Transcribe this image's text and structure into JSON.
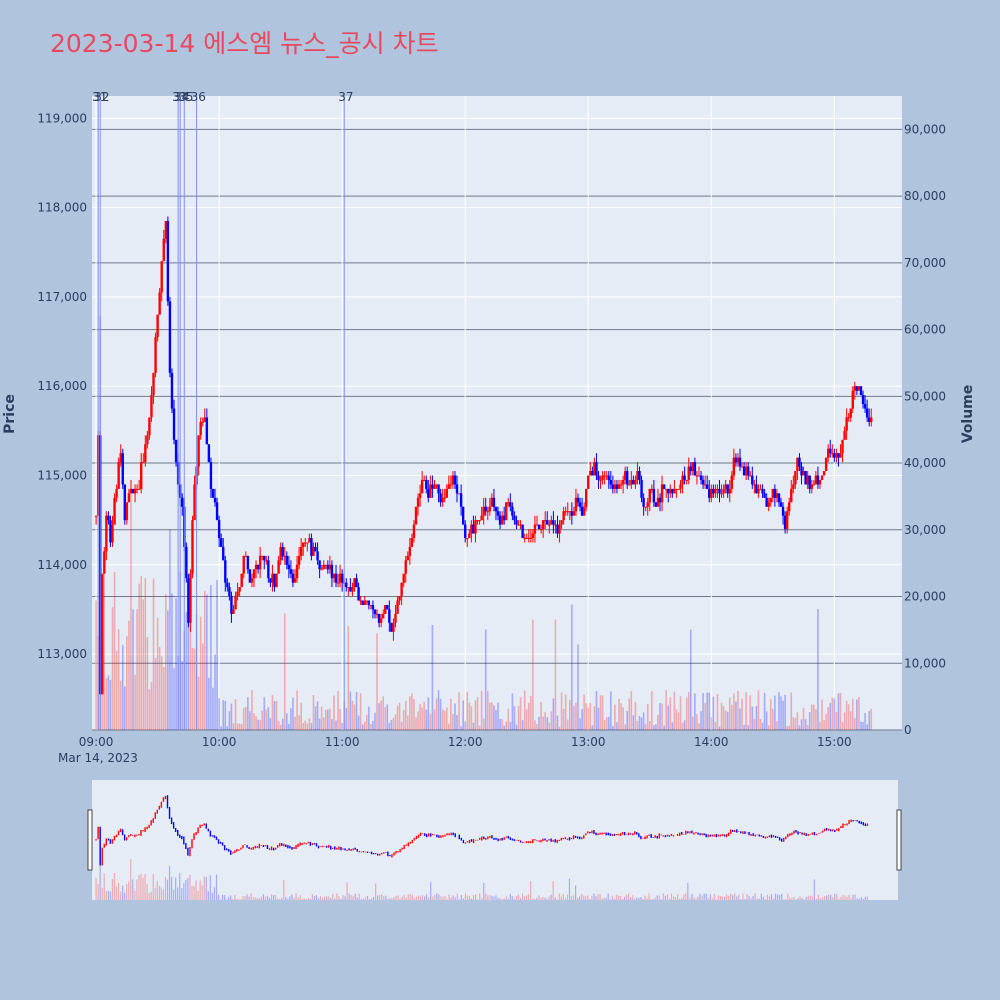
{
  "title": "2023-03-14 에스엠 뉴스_공시 차트",
  "colors": {
    "up": "#ff0000",
    "down": "#0000ff",
    "marker": "#7f8ff0",
    "title": "#e8495f",
    "plot_bg": "#e5ecf6",
    "page_bg": "#b0c4de"
  },
  "chart_data": {
    "type": "candlestick",
    "title": "2023-03-14 에스엠 뉴스_공시 차트",
    "date_label": "Mar 14, 2023",
    "x_range": [
      "08:58",
      "15:33"
    ],
    "x_ticks": [
      "09:00",
      "10:00",
      "11:00",
      "12:00",
      "13:00",
      "14:00",
      "15:00"
    ],
    "y_price": {
      "label": "Price",
      "range": [
        112150,
        119250
      ],
      "ticks": [
        {
          "v": 113000,
          "t": "113,000"
        },
        {
          "v": 114000,
          "t": "114,000"
        },
        {
          "v": 115000,
          "t": "115,000"
        },
        {
          "v": 116000,
          "t": "116,000"
        },
        {
          "v": 117000,
          "t": "117,000"
        },
        {
          "v": 118000,
          "t": "118,000"
        },
        {
          "v": 119000,
          "t": "119,000"
        }
      ]
    },
    "y_volume": {
      "label": "Volume",
      "range": [
        0,
        95000
      ],
      "ticks": [
        {
          "v": 0,
          "t": "0"
        },
        {
          "v": 10000,
          "t": "10,000"
        },
        {
          "v": 20000,
          "t": "20,000"
        },
        {
          "v": 30000,
          "t": "30,000"
        },
        {
          "v": 40000,
          "t": "40,000"
        },
        {
          "v": 50000,
          "t": "50,000"
        },
        {
          "v": 60000,
          "t": "60,000"
        },
        {
          "v": 70000,
          "t": "70,000"
        },
        {
          "v": 80000,
          "t": "80,000"
        },
        {
          "v": 90000,
          "t": "90,000"
        }
      ]
    },
    "news_markers": [
      {
        "time": "09:01",
        "label": "31"
      },
      {
        "time": "09:02",
        "label": "32"
      },
      {
        "time": "09:40",
        "label": "33"
      },
      {
        "time": "09:41",
        "label": "34"
      },
      {
        "time": "09:43",
        "label": "35"
      },
      {
        "time": "09:49",
        "label": "36"
      },
      {
        "time": "11:01",
        "label": "37"
      }
    ],
    "price_keypoints": [
      [
        "09:00",
        114500
      ],
      [
        "09:01",
        115400
      ],
      [
        "09:02",
        112600
      ],
      [
        "09:03",
        113800
      ],
      [
        "09:05",
        114600
      ],
      [
        "09:07",
        114200
      ],
      [
        "09:09",
        114700
      ],
      [
        "09:12",
        115300
      ],
      [
        "09:14",
        114500
      ],
      [
        "09:17",
        114900
      ],
      [
        "09:20",
        114800
      ],
      [
        "09:23",
        115200
      ],
      [
        "09:26",
        115600
      ],
      [
        "09:28",
        116200
      ],
      [
        "09:30",
        116800
      ],
      [
        "09:32",
        117400
      ],
      [
        "09:34",
        117800
      ],
      [
        "09:36",
        116200
      ],
      [
        "09:38",
        115400
      ],
      [
        "09:40",
        114900
      ],
      [
        "09:42",
        114600
      ],
      [
        "09:45",
        113400
      ],
      [
        "09:47",
        114500
      ],
      [
        "09:50",
        115500
      ],
      [
        "09:53",
        115600
      ],
      [
        "09:56",
        114900
      ],
      [
        "10:00",
        114300
      ],
      [
        "10:03",
        113800
      ],
      [
        "10:06",
        113500
      ],
      [
        "10:09",
        113700
      ],
      [
        "10:12",
        114100
      ],
      [
        "10:15",
        113900
      ],
      [
        "10:18",
        114000
      ],
      [
        "10:21",
        114100
      ],
      [
        "10:24",
        113900
      ],
      [
        "10:27",
        113800
      ],
      [
        "10:30",
        114200
      ],
      [
        "10:33",
        114000
      ],
      [
        "10:36",
        113800
      ],
      [
        "10:39",
        114100
      ],
      [
        "10:42",
        114300
      ],
      [
        "10:45",
        114200
      ],
      [
        "10:48",
        114100
      ],
      [
        "10:51",
        113900
      ],
      [
        "10:54",
        114000
      ],
      [
        "10:57",
        113800
      ],
      [
        "11:00",
        113900
      ],
      [
        "11:03",
        113700
      ],
      [
        "11:06",
        113800
      ],
      [
        "11:09",
        113600
      ],
      [
        "11:12",
        113600
      ],
      [
        "11:15",
        113500
      ],
      [
        "11:18",
        113400
      ],
      [
        "11:21",
        113500
      ],
      [
        "11:24",
        113300
      ],
      [
        "11:27",
        113600
      ],
      [
        "11:30",
        113900
      ],
      [
        "11:33",
        114200
      ],
      [
        "11:36",
        114600
      ],
      [
        "11:39",
        115000
      ],
      [
        "11:42",
        114800
      ],
      [
        "11:45",
        114900
      ],
      [
        "11:48",
        114700
      ],
      [
        "11:51",
        114800
      ],
      [
        "11:54",
        114900
      ],
      [
        "11:57",
        114800
      ],
      [
        "12:00",
        114300
      ],
      [
        "12:03",
        114400
      ],
      [
        "12:06",
        114500
      ],
      [
        "12:09",
        114600
      ],
      [
        "12:12",
        114700
      ],
      [
        "12:15",
        114600
      ],
      [
        "12:18",
        114500
      ],
      [
        "12:21",
        114700
      ],
      [
        "12:24",
        114500
      ],
      [
        "12:27",
        114400
      ],
      [
        "12:30",
        114300
      ],
      [
        "12:33",
        114400
      ],
      [
        "12:36",
        114400
      ],
      [
        "12:39",
        114500
      ],
      [
        "12:42",
        114500
      ],
      [
        "12:45",
        114400
      ],
      [
        "12:48",
        114500
      ],
      [
        "12:51",
        114600
      ],
      [
        "12:54",
        114700
      ],
      [
        "12:57",
        114600
      ],
      [
        "13:00",
        114900
      ],
      [
        "13:03",
        115100
      ],
      [
        "13:06",
        114900
      ],
      [
        "13:09",
        115000
      ],
      [
        "13:12",
        114800
      ],
      [
        "13:15",
        114900
      ],
      [
        "13:18",
        115000
      ],
      [
        "13:21",
        114900
      ],
      [
        "13:24",
        115000
      ],
      [
        "13:27",
        114700
      ],
      [
        "13:30",
        114800
      ],
      [
        "13:33",
        114700
      ],
      [
        "13:36",
        114800
      ],
      [
        "13:39",
        114900
      ],
      [
        "13:42",
        114800
      ],
      [
        "13:45",
        114900
      ],
      [
        "13:48",
        115000
      ],
      [
        "13:51",
        115100
      ],
      [
        "13:54",
        115000
      ],
      [
        "13:57",
        114900
      ],
      [
        "14:00",
        114800
      ],
      [
        "14:03",
        114900
      ],
      [
        "14:06",
        114800
      ],
      [
        "14:09",
        114900
      ],
      [
        "14:12",
        115200
      ],
      [
        "14:15",
        115100
      ],
      [
        "14:18",
        115000
      ],
      [
        "14:21",
        114900
      ],
      [
        "14:24",
        114800
      ],
      [
        "14:27",
        114700
      ],
      [
        "14:30",
        114800
      ],
      [
        "14:33",
        114700
      ],
      [
        "14:36",
        114400
      ],
      [
        "14:39",
        114800
      ],
      [
        "14:42",
        115200
      ],
      [
        "14:45",
        115000
      ],
      [
        "14:48",
        114900
      ],
      [
        "14:51",
        115000
      ],
      [
        "14:54",
        114900
      ],
      [
        "14:57",
        115300
      ],
      [
        "15:00",
        115200
      ],
      [
        "15:03",
        115300
      ],
      [
        "15:06",
        115600
      ],
      [
        "15:09",
        115900
      ],
      [
        "15:12",
        116000
      ],
      [
        "15:15",
        115700
      ],
      [
        "15:18",
        115600
      ]
    ]
  }
}
